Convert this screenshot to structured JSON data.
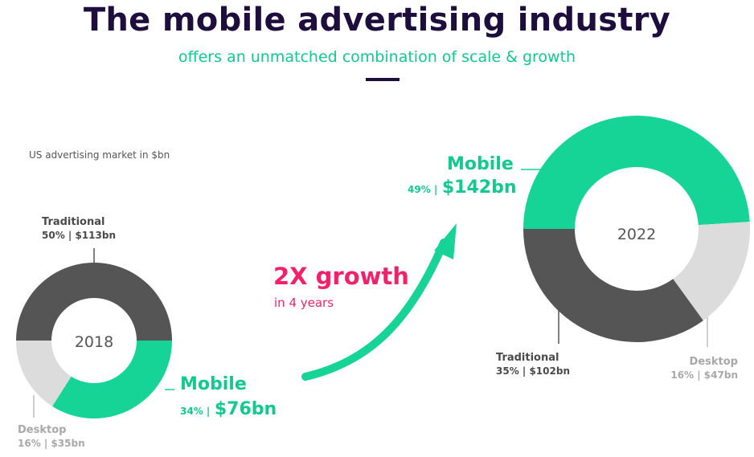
{
  "title": "The mobile advertising industry",
  "subtitle": "offers an unmatched combination of scale & growth",
  "note": "US advertising market in $bn",
  "growth": {
    "headline": "2X growth",
    "sub": "in 4 years"
  },
  "colors": {
    "mobile": "#16d495",
    "traditional": "#555555",
    "desktop": "#dcdcdc",
    "accent": "#f2226a",
    "title": "#1d0e3e"
  },
  "chart_data": [
    {
      "type": "donut",
      "center_label": "2018",
      "unit": "$bn",
      "segments": [
        {
          "name": "Traditional",
          "percent": 50,
          "value": 113,
          "label": "50% | $113bn"
        },
        {
          "name": "Mobile",
          "percent": 34,
          "value": 76,
          "label_pct": "34% |",
          "label_val": "$76bn"
        },
        {
          "name": "Desktop",
          "percent": 16,
          "value": 35,
          "label": "16% | $35bn"
        }
      ]
    },
    {
      "type": "donut",
      "center_label": "2022",
      "unit": "$bn",
      "segments": [
        {
          "name": "Mobile",
          "percent": 49,
          "value": 142,
          "label_pct": "49% |",
          "label_val": "$142bn"
        },
        {
          "name": "Desktop",
          "percent": 16,
          "value": 47,
          "label": "16% | $47bn"
        },
        {
          "name": "Traditional",
          "percent": 35,
          "value": 102,
          "label": "35% | $102bn"
        }
      ]
    }
  ]
}
